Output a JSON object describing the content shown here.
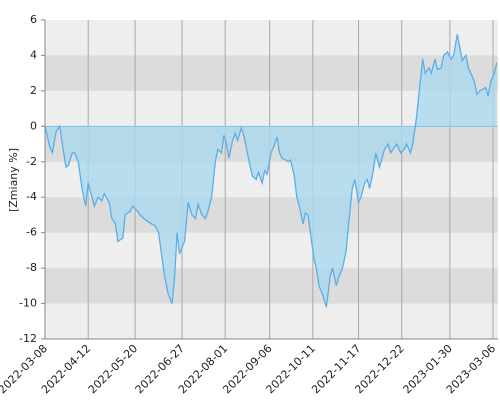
{
  "chart_data": {
    "type": "area",
    "y_label": "[Zmiany %]",
    "color": "#5aaee8",
    "fill": "#a9d8ee",
    "grid": true,
    "bands": true,
    "ylim": [
      -12,
      6
    ],
    "yticks": [
      -12,
      -10,
      -8,
      -6,
      -4,
      -2,
      0,
      2,
      4,
      6
    ],
    "xlim": [
      "2022-03-08",
      "2023-03-10"
    ],
    "xticks": [
      "2022-03-08",
      "2022-04-12",
      "2022-05-20",
      "2022-06-27",
      "2022-08-01",
      "2022-09-06",
      "2022-10-11",
      "2022-11-17",
      "2022-12-22",
      "2023-01-30",
      "2023-03-06"
    ],
    "x": [
      "2022-03-08",
      "2022-03-12",
      "2022-03-14",
      "2022-03-17",
      "2022-03-20",
      "2022-03-22",
      "2022-03-25",
      "2022-03-27",
      "2022-03-30",
      "2022-04-01",
      "2022-04-04",
      "2022-04-07",
      "2022-04-10",
      "2022-04-12",
      "2022-04-15",
      "2022-04-17",
      "2022-04-20",
      "2022-04-23",
      "2022-04-25",
      "2022-04-29",
      "2022-05-01",
      "2022-05-04",
      "2022-05-06",
      "2022-05-10",
      "2022-05-12",
      "2022-05-16",
      "2022-05-18",
      "2022-05-22",
      "2022-05-24",
      "2022-05-27",
      "2022-05-29",
      "2022-06-02",
      "2022-06-05",
      "2022-06-08",
      "2022-06-10",
      "2022-06-13",
      "2022-06-16",
      "2022-06-19",
      "2022-06-21",
      "2022-06-23",
      "2022-06-25",
      "2022-06-29",
      "2022-07-02",
      "2022-07-05",
      "2022-07-08",
      "2022-07-10",
      "2022-07-13",
      "2022-07-16",
      "2022-07-18",
      "2022-07-21",
      "2022-07-24",
      "2022-07-26",
      "2022-07-29",
      "2022-07-31",
      "2022-08-02",
      "2022-08-04",
      "2022-08-07",
      "2022-08-09",
      "2022-08-11",
      "2022-08-14",
      "2022-08-16",
      "2022-08-19",
      "2022-08-21",
      "2022-08-23",
      "2022-08-26",
      "2022-08-28",
      "2022-08-31",
      "2022-09-02",
      "2022-09-04",
      "2022-09-07",
      "2022-09-09",
      "2022-09-12",
      "2022-09-14",
      "2022-09-16",
      "2022-09-19",
      "2022-09-21",
      "2022-09-23",
      "2022-09-26",
      "2022-09-28",
      "2022-09-30",
      "2022-10-03",
      "2022-10-05",
      "2022-10-07",
      "2022-10-09",
      "2022-10-12",
      "2022-10-14",
      "2022-10-16",
      "2022-10-19",
      "2022-10-22",
      "2022-10-25",
      "2022-10-27",
      "2022-10-30",
      "2022-11-01",
      "2022-11-04",
      "2022-11-07",
      "2022-11-09",
      "2022-11-12",
      "2022-11-14",
      "2022-11-17",
      "2022-11-19",
      "2022-11-22",
      "2022-11-24",
      "2022-11-26",
      "2022-11-29",
      "2022-12-01",
      "2022-12-04",
      "2022-12-06",
      "2022-12-08",
      "2022-12-11",
      "2022-12-13",
      "2022-12-15",
      "2022-12-18",
      "2022-12-21",
      "2022-12-24",
      "2022-12-26",
      "2022-12-29",
      "2022-12-31",
      "2023-01-03",
      "2023-01-06",
      "2023-01-08",
      "2023-01-10",
      "2023-01-13",
      "2023-01-15",
      "2023-01-18",
      "2023-01-20",
      "2023-01-23",
      "2023-01-25",
      "2023-01-28",
      "2023-01-31",
      "2023-02-02",
      "2023-02-05",
      "2023-02-07",
      "2023-02-09",
      "2023-02-12",
      "2023-02-14",
      "2023-02-16",
      "2023-02-19",
      "2023-02-21",
      "2023-02-23",
      "2023-02-26",
      "2023-02-28",
      "2023-03-02",
      "2023-03-04",
      "2023-03-07",
      "2023-03-09"
    ],
    "values": [
      0,
      -1.2,
      -1.5,
      -0.3,
      0,
      -1,
      -2.3,
      -2.2,
      -1.5,
      -1.5,
      -2,
      -3.5,
      -4.5,
      -3.2,
      -4,
      -4.5,
      -4,
      -4.2,
      -3.8,
      -4.3,
      -5.2,
      -5.5,
      -6.5,
      -6.3,
      -5,
      -4.8,
      -4.5,
      -4.8,
      -5,
      -5.2,
      -5.3,
      -5.5,
      -5.6,
      -6,
      -7,
      -8.5,
      -9.5,
      -10,
      -8.5,
      -6,
      -7.2,
      -6.5,
      -4.3,
      -5,
      -5.2,
      -4.4,
      -5,
      -5.2,
      -4.8,
      -4,
      -2,
      -1.3,
      -1.5,
      -0.5,
      -1,
      -1.8,
      -0.8,
      -0.4,
      -0.8,
      -0.1,
      -0.5,
      -1.5,
      -2.2,
      -2.8,
      -3,
      -2.6,
      -3.2,
      -2.5,
      -2.7,
      -1.5,
      -1.2,
      -0.6,
      -1.5,
      -1.8,
      -1.9,
      -2,
      -1.9,
      -2.8,
      -4,
      -4.5,
      -5.5,
      -4.9,
      -5,
      -6,
      -7.5,
      -8.1,
      -9,
      -9.5,
      -10.2,
      -8.5,
      -8,
      -9,
      -8.5,
      -8,
      -7,
      -5.5,
      -3.5,
      -3,
      -4.3,
      -4,
      -3.2,
      -3,
      -3.5,
      -2.5,
      -1.5,
      -2.3,
      -1.8,
      -1.3,
      -1,
      -1.5,
      -1.3,
      -1,
      -1.5,
      -1.3,
      -1,
      -1.5,
      -1,
      0.5,
      2.5,
      3.8,
      3,
      3.3,
      3,
      3.8,
      3.2,
      3.3,
      4,
      4.2,
      3.8,
      4,
      5.2,
      4.5,
      3.7,
      4,
      3.3,
      3,
      2.5,
      1.8,
      2,
      2.1,
      2.2,
      1.7,
      2.5,
      3,
      3.6
    ]
  }
}
